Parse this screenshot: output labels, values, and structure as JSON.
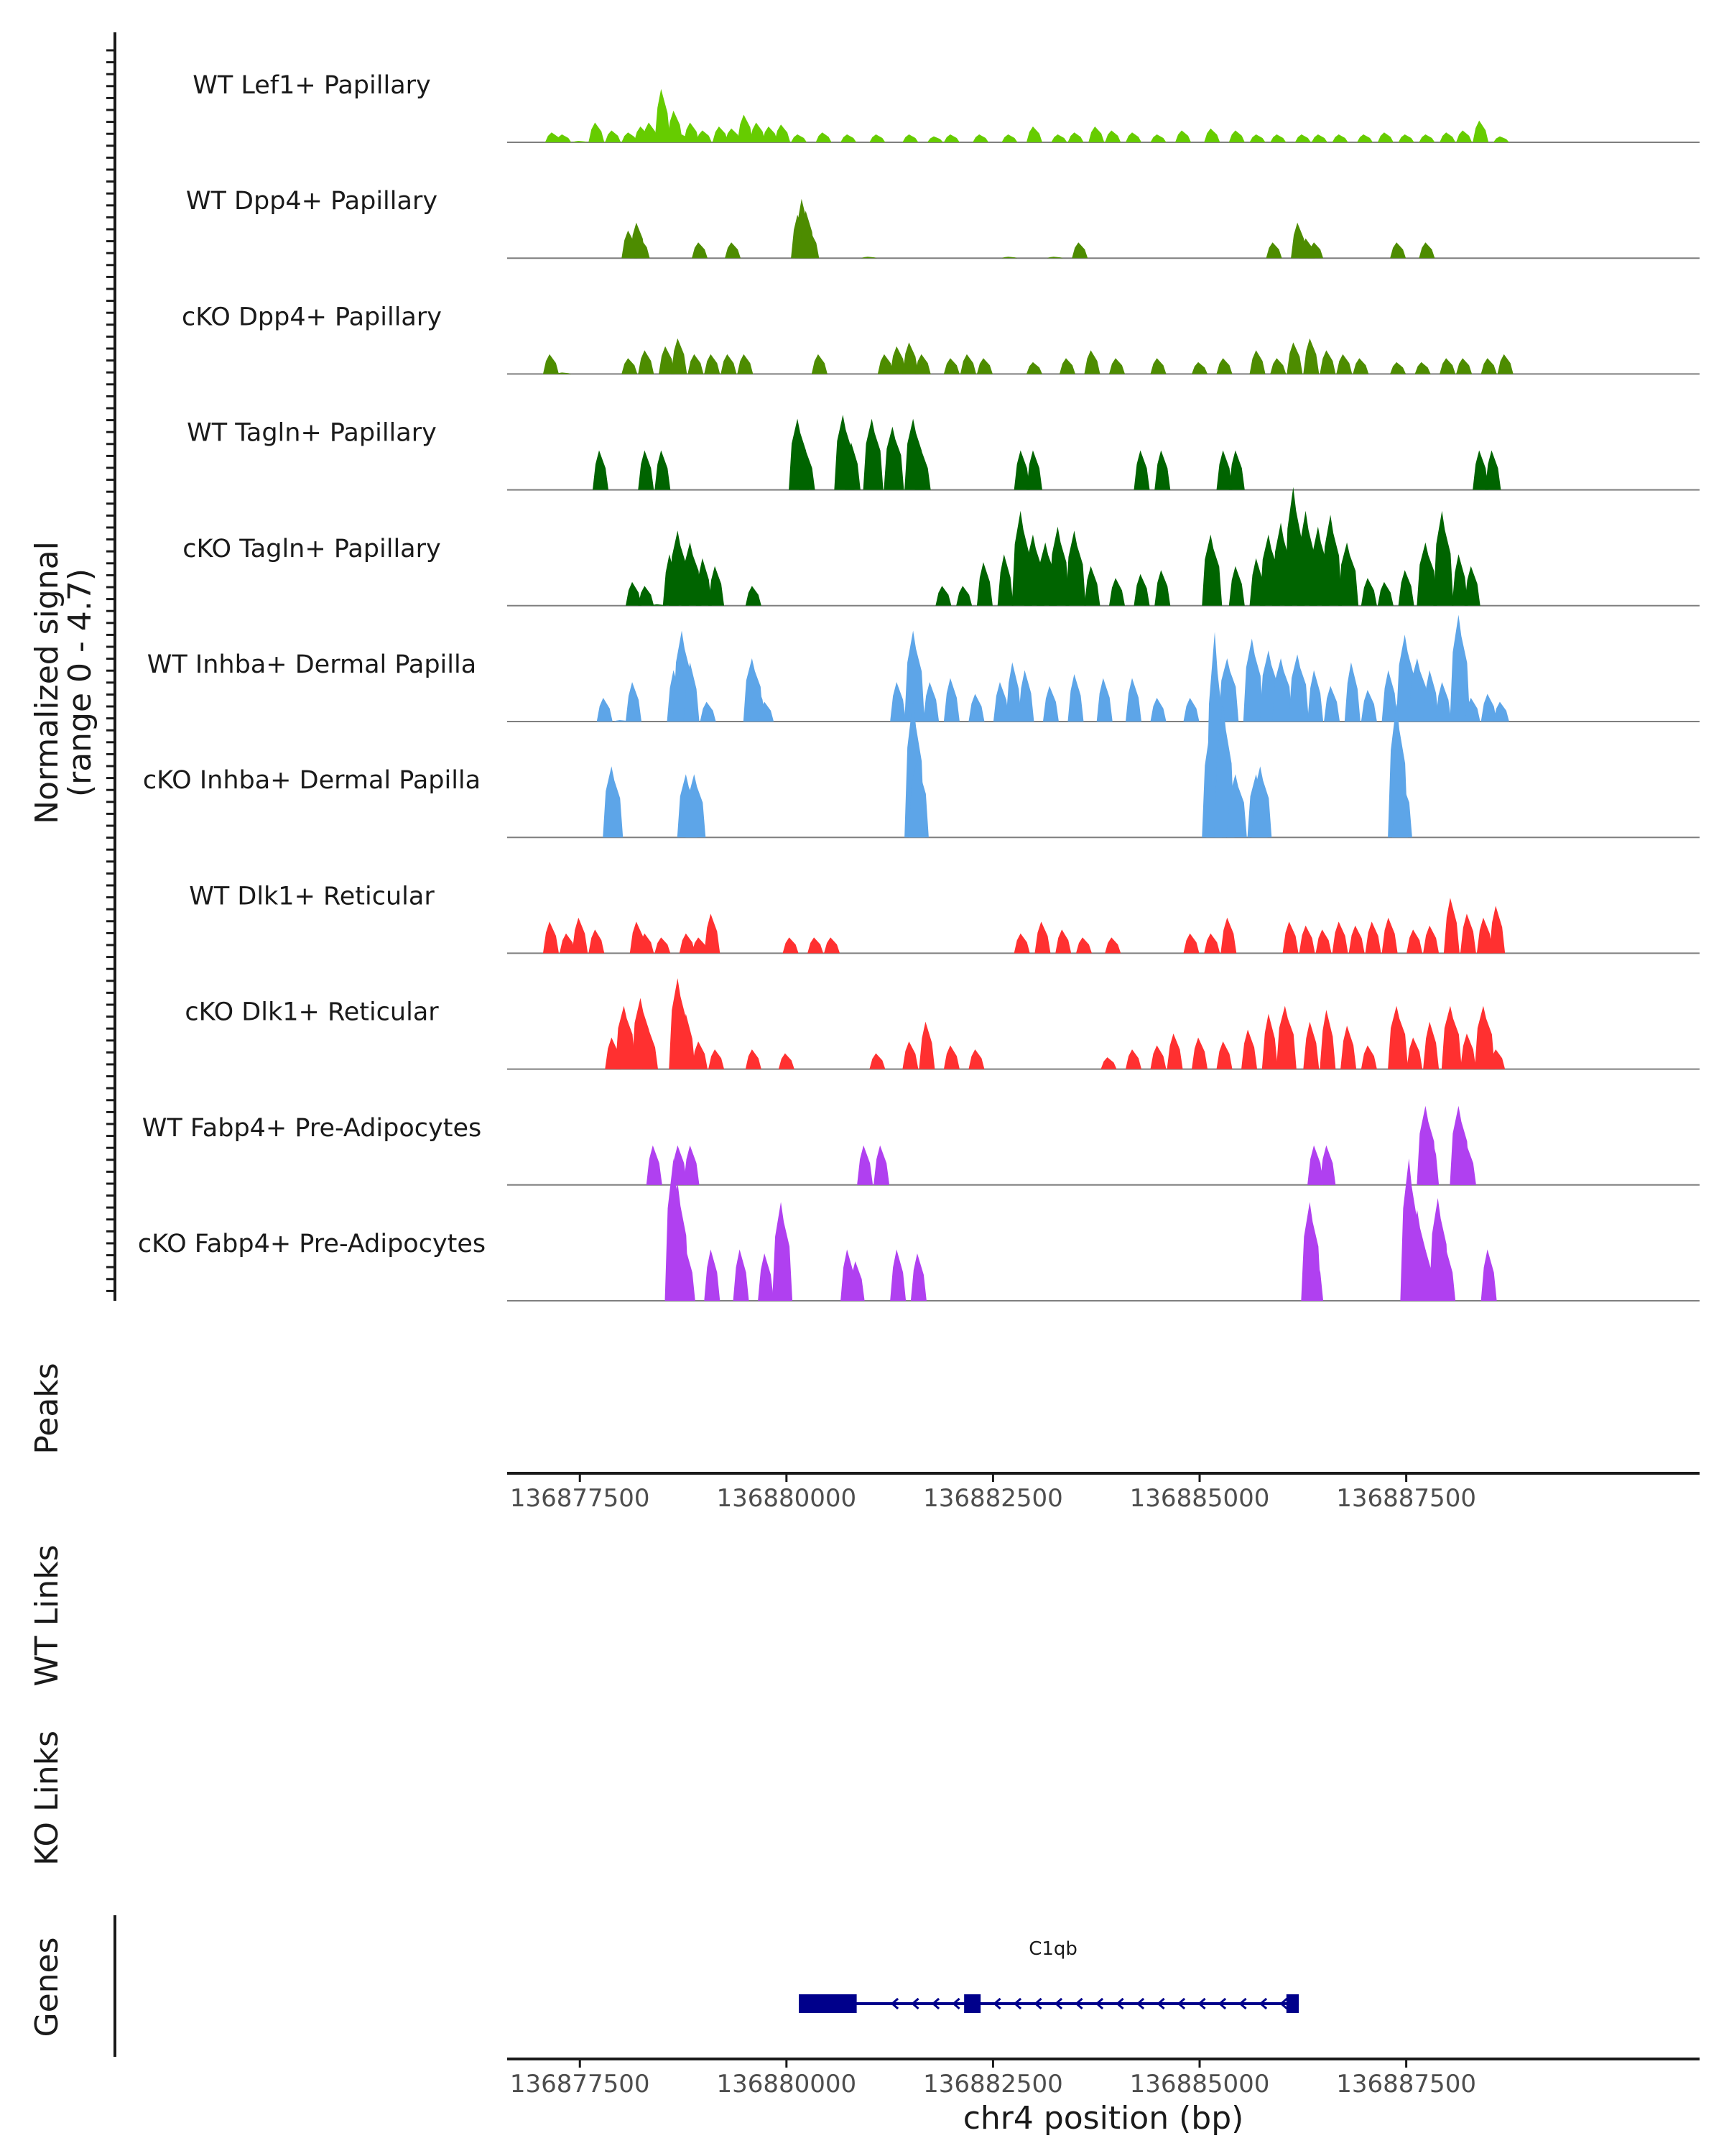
{
  "chart_data": {
    "type": "area",
    "title": "",
    "ylabel": "Normalized signal",
    "ylabel_range": "(range 0 - 4.7)",
    "y_range": [
      0,
      4.7
    ],
    "xlabel": "chr4 position (bp)",
    "xlim": [
      136876620,
      136891050
    ],
    "x_ticks": [
      136877500,
      136880000,
      136882500,
      136885000,
      136887500
    ],
    "x_tick_labels": [
      "136877500",
      "136880000",
      "136882500",
      "136885000",
      "136887500"
    ],
    "tracks": [
      {
        "name": "WT Lef1+ Papillary",
        "color": "#66CC00",
        "x": [
          136877175,
          136877300,
          136877500,
          136877700,
          136877900,
          136878100,
          136878250,
          136878350,
          136878500,
          136878650,
          136878750,
          136878850,
          136879000,
          136879200,
          136879350,
          136879500,
          136879650,
          136879800,
          136879950,
          136880150,
          136880450,
          136880750,
          136881100,
          136881500,
          136881800,
          136882000,
          136882350,
          136882700,
          136883000,
          136883300,
          136883500,
          136883750,
          136883950,
          136884200,
          136884500,
          136884800,
          136885150,
          136885450,
          136885700,
          136885950,
          136886250,
          136886450,
          136886700,
          136887000,
          136887250,
          136887500,
          136887750,
          136888000,
          136888200,
          136888400,
          136888650
        ],
        "y": [
          0.25,
          0.2,
          0.02,
          0.5,
          0.3,
          0.25,
          0.4,
          0.5,
          1.35,
          0.8,
          0.2,
          0.5,
          0.3,
          0.4,
          0.35,
          0.7,
          0.5,
          0.4,
          0.45,
          0.2,
          0.25,
          0.2,
          0.2,
          0.2,
          0.15,
          0.2,
          0.2,
          0.2,
          0.4,
          0.2,
          0.25,
          0.4,
          0.3,
          0.25,
          0.2,
          0.3,
          0.35,
          0.3,
          0.2,
          0.2,
          0.2,
          0.2,
          0.2,
          0.2,
          0.25,
          0.2,
          0.2,
          0.25,
          0.3,
          0.55,
          0.15
        ]
      },
      {
        "name": "WT Dpp4+ Papillary",
        "color": "#4D8C00",
        "x": [
          136878100,
          136878200,
          136878250,
          136878950,
          136879350,
          136880150,
          136880200,
          136880250,
          136880300,
          136881000,
          136882700,
          136883250,
          136883550,
          136885900,
          136886200,
          136886300,
          136886400,
          136887400,
          136887750
        ],
        "y": [
          0.7,
          0.9,
          0.5,
          0.4,
          0.4,
          1.1,
          1.5,
          1.2,
          0.7,
          0.02,
          0.02,
          0.02,
          0.4,
          0.4,
          0.9,
          0.5,
          0.4,
          0.4,
          0.4
        ]
      },
      {
        "name": "cKO Dpp4+ Papillary",
        "color": "#4D8C00",
        "x": [
          136877150,
          136877300,
          136878100,
          136878300,
          136878550,
          136878700,
          136878900,
          136879100,
          136879300,
          136879500,
          136880400,
          136881200,
          136881350,
          136881500,
          136881650,
          136882000,
          136882200,
          136882400,
          136883000,
          136883400,
          136883700,
          136884000,
          136884500,
          136885000,
          136885300,
          136885700,
          136885950,
          136886150,
          136886350,
          136886550,
          136886750,
          136886950,
          136887400,
          136887700,
          136888000,
          136888200,
          136888500,
          136888700
        ],
        "y": [
          0.5,
          0.02,
          0.4,
          0.6,
          0.7,
          0.9,
          0.5,
          0.5,
          0.5,
          0.5,
          0.5,
          0.5,
          0.7,
          0.8,
          0.5,
          0.4,
          0.5,
          0.4,
          0.3,
          0.4,
          0.6,
          0.4,
          0.4,
          0.3,
          0.4,
          0.6,
          0.4,
          0.8,
          0.9,
          0.6,
          0.5,
          0.4,
          0.3,
          0.3,
          0.4,
          0.4,
          0.4,
          0.5
        ]
      },
      {
        "name": "WT Tagln+ Papillary",
        "color": "#006400",
        "x": [
          136877750,
          136878300,
          136878500,
          136880150,
          136880250,
          136880700,
          136880800,
          136881050,
          136881300,
          136881550,
          136881650,
          136882850,
          136883000,
          136884300,
          136884550,
          136885300,
          136885450,
          136888400,
          136888550
        ],
        "y": [
          1.0,
          1.0,
          1.0,
          1.8,
          1.0,
          1.9,
          1.2,
          1.8,
          1.6,
          1.8,
          1.0,
          1.0,
          1.0,
          1.0,
          1.0,
          1.0,
          1.0,
          1.0,
          1.0
        ]
      },
      {
        "name": "cKO Tagln+ Papillary",
        "color": "#006400",
        "x": [
          136878150,
          136878300,
          136878450,
          136878600,
          136878700,
          136878850,
          136879000,
          136879150,
          136879600,
          136881900,
          136882150,
          136882400,
          136882650,
          136882850,
          136883000,
          136883150,
          136883300,
          136883500,
          136883700,
          136884000,
          136884300,
          136884550,
          136885150,
          136885450,
          136885700,
          136885850,
          136886000,
          136886150,
          136886300,
          136886450,
          136886600,
          136886800,
          136887050,
          136887250,
          136887500,
          136887750,
          136887950,
          136888150,
          136888300
        ],
        "y": [
          0.6,
          0.5,
          0.02,
          1.3,
          1.9,
          1.6,
          1.2,
          1.0,
          0.5,
          0.5,
          0.5,
          1.1,
          1.3,
          2.4,
          1.8,
          1.6,
          2.0,
          1.9,
          1.0,
          0.7,
          0.8,
          0.9,
          1.8,
          1.0,
          1.2,
          1.8,
          2.1,
          3.0,
          2.4,
          2.0,
          2.3,
          1.6,
          0.7,
          0.6,
          0.9,
          1.6,
          2.4,
          1.3,
          1.0
        ]
      },
      {
        "name": "WT Inhba+ Dermal Papilla",
        "color": "#5DA5E8",
        "x": [
          136877800,
          136878000,
          136878150,
          136878650,
          136878750,
          136878850,
          136879050,
          136879600,
          136879650,
          136879750,
          136881350,
          136881550,
          136881750,
          136882000,
          136882300,
          136882600,
          136882750,
          136882900,
          136883200,
          136883500,
          136883850,
          136884200,
          136884500,
          136884900,
          136885200,
          136885350,
          136885650,
          136885850,
          136886000,
          136886200,
          136886400,
          136886600,
          136886850,
          136887050,
          136887300,
          136887500,
          136887650,
          136887800,
          136887950,
          136888150,
          136888300,
          136888500,
          136888650
        ],
        "y": [
          0.6,
          0.02,
          1.0,
          1.3,
          2.3,
          1.5,
          0.5,
          1.6,
          1.0,
          0.5,
          1.0,
          2.3,
          1.0,
          1.1,
          0.7,
          1.0,
          1.5,
          1.3,
          0.9,
          1.2,
          1.1,
          1.1,
          0.6,
          0.6,
          0.5,
          1.6,
          2.1,
          1.8,
          1.6,
          1.7,
          1.3,
          0.9,
          1.5,
          0.8,
          1.3,
          2.2,
          1.6,
          1.3,
          1.0,
          2.7,
          0.6,
          0.7,
          0.5
        ]
      },
      {
        "name": "cKO Inhba+ Dermal Papilla",
        "color": "#5DA5E8",
        "x": [
          136877900,
          136878800,
          136878900,
          136881550,
          136881600,
          136885150,
          136885200,
          136885300,
          136885450,
          136885700,
          136885750,
          136887400,
          136887450
        ],
        "y": [
          1.8,
          1.6,
          1.6,
          3.5,
          2.0,
          2.8,
          5.2,
          3.4,
          1.6,
          1.6,
          1.8,
          3.4,
          1.6
        ]
      },
      {
        "name": "WT Dlk1+ Reticular",
        "color": "#FF3030",
        "x": [
          136877150,
          136877350,
          136877500,
          136877700,
          136878200,
          136878300,
          136878500,
          136878800,
          136878950,
          136879100,
          136880050,
          136880350,
          136880550,
          136882850,
          136883100,
          136883350,
          136883600,
          136883950,
          136884900,
          136885150,
          136885350,
          136886100,
          136886300,
          136886500,
          136886700,
          136886900,
          136887100,
          136887300,
          136887600,
          136887800,
          136888050,
          136888250,
          136888450,
          136888600
        ],
        "y": [
          0.8,
          0.5,
          0.9,
          0.6,
          0.8,
          0.5,
          0.4,
          0.5,
          0.4,
          1.0,
          0.4,
          0.4,
          0.4,
          0.5,
          0.8,
          0.6,
          0.4,
          0.4,
          0.5,
          0.5,
          0.9,
          0.8,
          0.7,
          0.6,
          0.8,
          0.7,
          0.8,
          0.9,
          0.6,
          0.7,
          1.4,
          1.0,
          0.9,
          1.2
        ]
      },
      {
        "name": "cKO Dlk1+ Reticular",
        "color": "#FF3030",
        "x": [
          136877900,
          136878050,
          136878250,
          136878350,
          136878700,
          136878800,
          136878950,
          136879150,
          136879600,
          136880000,
          136881100,
          136881500,
          136881700,
          136882000,
          136882300,
          136883900,
          136884200,
          136884500,
          136884700,
          136885000,
          136885300,
          136885600,
          136885850,
          136886050,
          136886350,
          136886550,
          136886800,
          136887050,
          136887400,
          136887600,
          136887800,
          136888050,
          136888250,
          136888450,
          136888600
        ],
        "y": [
          0.8,
          1.6,
          1.8,
          1.0,
          2.3,
          1.4,
          0.7,
          0.5,
          0.5,
          0.4,
          0.4,
          0.7,
          1.2,
          0.6,
          0.5,
          0.3,
          0.5,
          0.6,
          0.9,
          0.8,
          0.7,
          1.0,
          1.4,
          1.6,
          1.2,
          1.5,
          1.1,
          0.6,
          1.6,
          0.8,
          1.2,
          1.6,
          0.9,
          1.6,
          0.5
        ]
      },
      {
        "name": "WT Fabp4+ Pre-Adipocytes",
        "color": "#B040F0",
        "x": [
          136878400,
          136878700,
          136878850,
          136880950,
          136881150,
          136886400,
          136886550,
          136887750,
          136887800,
          136888150,
          136888250
        ],
        "y": [
          1.0,
          1.0,
          1.0,
          1.0,
          1.0,
          1.0,
          1.0,
          2.0,
          1.4,
          2.0,
          1.0
        ]
      },
      {
        "name": "cKO Fabp4+ Pre-Adipocytes",
        "color": "#B040F0",
        "x": [
          136878650,
          136878700,
          136878800,
          136879100,
          136879450,
          136879750,
          136879950,
          136880750,
          136880850,
          136881350,
          136881600,
          136886350,
          136886400,
          136887550,
          136887650,
          136887750,
          136887900,
          136888000,
          136888500
        ],
        "y": [
          3.6,
          3.0,
          1.3,
          1.3,
          1.3,
          1.2,
          2.5,
          1.3,
          1.0,
          1.3,
          1.2,
          2.5,
          1.3,
          3.6,
          2.3,
          1.3,
          2.6,
          1.3,
          1.3
        ]
      }
    ],
    "panels": [
      "Peaks",
      "WT Links",
      "KO Links",
      "Genes"
    ],
    "genes": [
      {
        "name": "C1qb",
        "start": 136880150,
        "end": 136886200,
        "strand": "-",
        "exons": [
          [
            136880150,
            136880850
          ],
          [
            136882150,
            136882350
          ],
          [
            136886050,
            136886200
          ]
        ],
        "color": "#00008B"
      }
    ]
  }
}
